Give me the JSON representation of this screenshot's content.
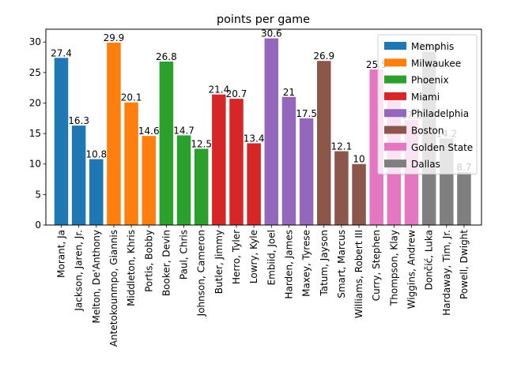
{
  "chart_data": {
    "type": "bar",
    "title": "points per game",
    "xlabel": "",
    "ylabel": "",
    "ylim": [
      0,
      32.1
    ],
    "yticks": [
      0,
      5,
      10,
      15,
      20,
      25,
      30
    ],
    "legend_position": "top-right",
    "grid": false,
    "series": [
      {
        "name": "Memphis",
        "color": "#1f77b4",
        "players": [
          "Morant, Ja",
          "Jackson, Jaren, Jr.",
          "Melton, De'Anthony"
        ],
        "values": [
          27.4,
          16.3,
          10.8
        ]
      },
      {
        "name": "Milwaukee",
        "color": "#ff7f0e",
        "players": [
          "Antetokounmpo, Giannis",
          "Middleton, Khris",
          "Portis, Bobby"
        ],
        "values": [
          29.9,
          20.1,
          14.6
        ]
      },
      {
        "name": "Phoenix",
        "color": "#2ca02c",
        "players": [
          "Booker, Devin",
          "Paul, Chris",
          "Johnson, Cameron"
        ],
        "values": [
          26.8,
          14.7,
          12.5
        ]
      },
      {
        "name": "Miami",
        "color": "#d62728",
        "players": [
          "Butler, Jimmy",
          "Herro, Tyler",
          "Lowry, Kyle"
        ],
        "values": [
          21.4,
          20.7,
          13.4
        ]
      },
      {
        "name": "Philadelphia",
        "color": "#9467bd",
        "players": [
          "Embiid, Joel",
          "Harden, James",
          "Maxey, Tyrese"
        ],
        "values": [
          30.6,
          21,
          17.5
        ]
      },
      {
        "name": "Boston",
        "color": "#8c564b",
        "players": [
          "Tatum, Jayson",
          "Smart, Marcus",
          "Williams, Robert III"
        ],
        "values": [
          26.9,
          12.1,
          10
        ]
      },
      {
        "name": "Golden State",
        "color": "#e377c2",
        "players": [
          "Curry, Stephen",
          "Thompson, Klay",
          "Wiggins, Andrew"
        ],
        "values": [
          25.5,
          20.4,
          17.2
        ]
      },
      {
        "name": "Dallas",
        "color": "#7f7f7f",
        "players": [
          "Dončić, Luka",
          "Hardaway, Tim, Jr.",
          "Powell, Dwight"
        ],
        "values": [
          28.4,
          14.2,
          8.7
        ]
      }
    ]
  }
}
